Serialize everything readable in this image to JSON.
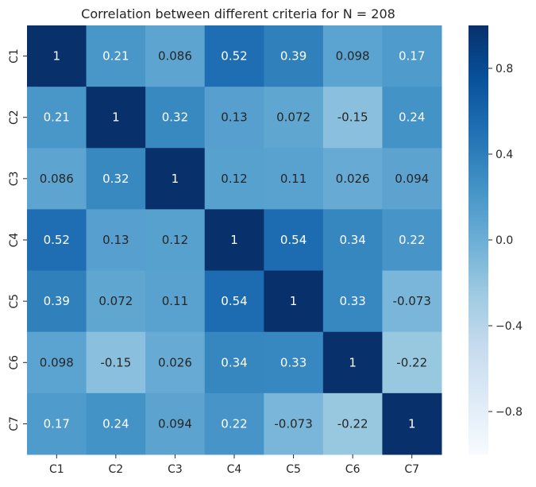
{
  "chart_data": {
    "type": "heatmap",
    "title": "Correlation between different criteria for N = 208",
    "xlabel": "",
    "ylabel": "",
    "x_categories": [
      "C1",
      "C2",
      "C3",
      "C4",
      "C5",
      "C6",
      "C7"
    ],
    "y_categories": [
      "C1",
      "C2",
      "C3",
      "C4",
      "C5",
      "C6",
      "C7"
    ],
    "values": [
      [
        1,
        0.21,
        0.086,
        0.52,
        0.39,
        0.098,
        0.17
      ],
      [
        0.21,
        1,
        0.32,
        0.13,
        0.072,
        -0.15,
        0.24
      ],
      [
        0.086,
        0.32,
        1,
        0.12,
        0.11,
        0.026,
        0.094
      ],
      [
        0.52,
        0.13,
        0.12,
        1,
        0.54,
        0.34,
        0.22
      ],
      [
        0.39,
        0.072,
        0.11,
        0.54,
        1,
        0.33,
        -0.073
      ],
      [
        0.098,
        -0.15,
        0.026,
        0.34,
        0.33,
        1,
        -0.22
      ],
      [
        0.17,
        0.24,
        0.094,
        0.22,
        -0.073,
        -0.22,
        1
      ]
    ],
    "value_labels": [
      [
        "1",
        "0.21",
        "0.086",
        "0.52",
        "0.39",
        "0.098",
        "0.17"
      ],
      [
        "0.21",
        "1",
        "0.32",
        "0.13",
        "0.072",
        "-0.15",
        "0.24"
      ],
      [
        "0.086",
        "0.32",
        "1",
        "0.12",
        "0.11",
        "0.026",
        "0.094"
      ],
      [
        "0.52",
        "0.13",
        "0.12",
        "1",
        "0.54",
        "0.34",
        "0.22"
      ],
      [
        "0.39",
        "0.072",
        "0.11",
        "0.54",
        "1",
        "0.33",
        "-0.073"
      ],
      [
        "0.098",
        "-0.15",
        "0.026",
        "0.34",
        "0.33",
        "1",
        "-0.22"
      ],
      [
        "0.17",
        "0.24",
        "0.094",
        "0.22",
        "-0.073",
        "-0.22",
        "1"
      ]
    ],
    "colorbar": {
      "colormap": "Blues",
      "vmin": -1,
      "vmax": 1,
      "ticks": [
        0.8,
        0.4,
        0.0,
        -0.4,
        -0.8
      ],
      "tick_labels": [
        "0.8",
        "0.4",
        "0.0",
        "−0.4",
        "−0.8"
      ]
    },
    "grid": false,
    "legend": "colorbar-right"
  }
}
